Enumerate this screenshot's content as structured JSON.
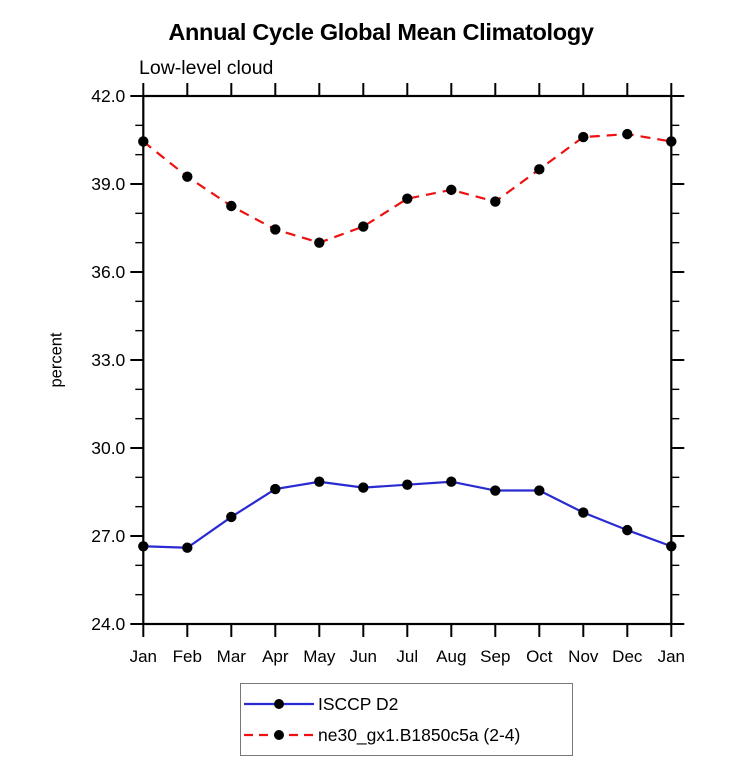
{
  "chart_data": {
    "type": "line",
    "title": "Annual Cycle Global Mean Climatology",
    "subtitle": "Low-level cloud",
    "ylabel": "percent",
    "categories": [
      "Jan",
      "Feb",
      "Mar",
      "Apr",
      "May",
      "Jun",
      "Jul",
      "Aug",
      "Sep",
      "Oct",
      "Nov",
      "Dec",
      "Jan"
    ],
    "ylim": [
      24.0,
      42.0
    ],
    "ytick_major_step": 3.0,
    "ytick_minor_step": 1.0,
    "ytick_label_format": "one-decimal",
    "grid": "off",
    "legend_position": "bottom-center",
    "axis_color": "#000000",
    "marker": "black-dot",
    "marker_color": "#000000",
    "series": [
      {
        "name": "ISCCP D2",
        "color": "#2a2ad2",
        "line_style": "solid",
        "values": [
          26.65,
          26.6,
          27.65,
          28.6,
          28.85,
          28.65,
          28.75,
          28.85,
          28.55,
          28.55,
          27.8,
          27.2,
          26.65
        ]
      },
      {
        "name": "ne30_gx1.B1850c5a (2-4)",
        "color": "#ee1111",
        "line_style": "dashed",
        "values": [
          40.45,
          39.25,
          38.25,
          37.45,
          37.0,
          37.55,
          38.5,
          38.8,
          38.4,
          39.5,
          40.6,
          40.7,
          40.45
        ]
      }
    ]
  }
}
